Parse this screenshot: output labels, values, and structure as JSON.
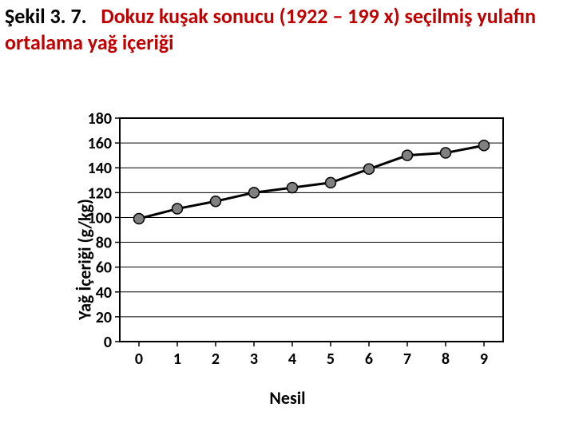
{
  "title": {
    "prefix": "Şekil 3. 7.",
    "main": "Dokuz kuşak sonucu (1922 – 199 x) seçilmiş yulafın ortalama yağ içeriği"
  },
  "chart": {
    "type": "line",
    "x_values": [
      0,
      1,
      2,
      3,
      4,
      5,
      6,
      7,
      8,
      9
    ],
    "y_values": [
      99,
      107,
      113,
      120,
      124,
      128,
      139,
      150,
      152,
      158
    ],
    "xlim": [
      -0.5,
      9.5
    ],
    "ylim": [
      0,
      180
    ],
    "ytick_step": 20,
    "xtick_step": 1,
    "xlabel": "Nesil",
    "ylabel": "Yağ İçeriği (g/kg)",
    "line_color": "#000000",
    "line_width": 3,
    "marker_fill": "#808080",
    "marker_stroke": "#000000",
    "marker_radius": 6.5,
    "grid_color": "#000000",
    "axis_color": "#000000",
    "background_color": "#ffffff",
    "tick_fontsize": 20,
    "tick_fontweight": 700,
    "label_fontsize": 22,
    "label_fontweight": 700
  }
}
